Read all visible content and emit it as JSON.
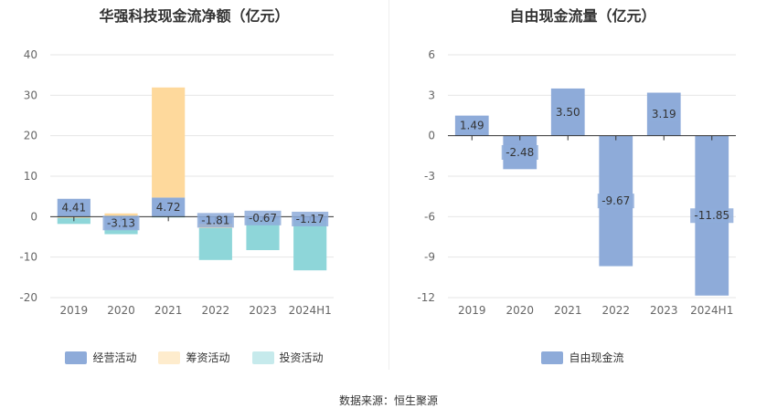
{
  "source": "数据来源：恒生聚源",
  "chart_data": [
    {
      "type": "bar",
      "stacked": true,
      "title": "华强科技现金流净额（亿元）",
      "categories": [
        "2019",
        "2020",
        "2021",
        "2022",
        "2023",
        "2024H1"
      ],
      "ylim": [
        -20,
        40
      ],
      "yticks": [
        -20,
        -10,
        0,
        10,
        20,
        30,
        40
      ],
      "legend_position": "bottom",
      "grid": true,
      "series": [
        {
          "name": "经营活动",
          "color": "#8eabd9",
          "values": [
            4.41,
            -3.13,
            4.72,
            -1.81,
            -0.67,
            -1.17
          ]
        },
        {
          "name": "筹资活动",
          "color": "#fed99c",
          "values": [
            -0.3,
            0.8,
            27.2,
            -1.0,
            0.0,
            0.0
          ]
        },
        {
          "name": "投资活动",
          "color": "#8ed6d9",
          "values": [
            -1.5,
            -1.2,
            -0.2,
            -7.9,
            -7.6,
            -12.1
          ]
        }
      ],
      "labeled_series": "经营活动"
    },
    {
      "type": "bar",
      "title": "自由现金流量（亿元）",
      "categories": [
        "2019",
        "2020",
        "2021",
        "2022",
        "2023",
        "2024H1"
      ],
      "ylim": [
        -12,
        6
      ],
      "yticks": [
        -12,
        -9,
        -6,
        -3,
        0,
        3,
        6
      ],
      "legend_position": "bottom",
      "grid": true,
      "series": [
        {
          "name": "自由现金流",
          "color": "#8eabd9",
          "values": [
            1.49,
            -2.48,
            3.5,
            -9.67,
            3.19,
            -11.85
          ]
        }
      ],
      "labeled_series": "自由现金流"
    }
  ]
}
